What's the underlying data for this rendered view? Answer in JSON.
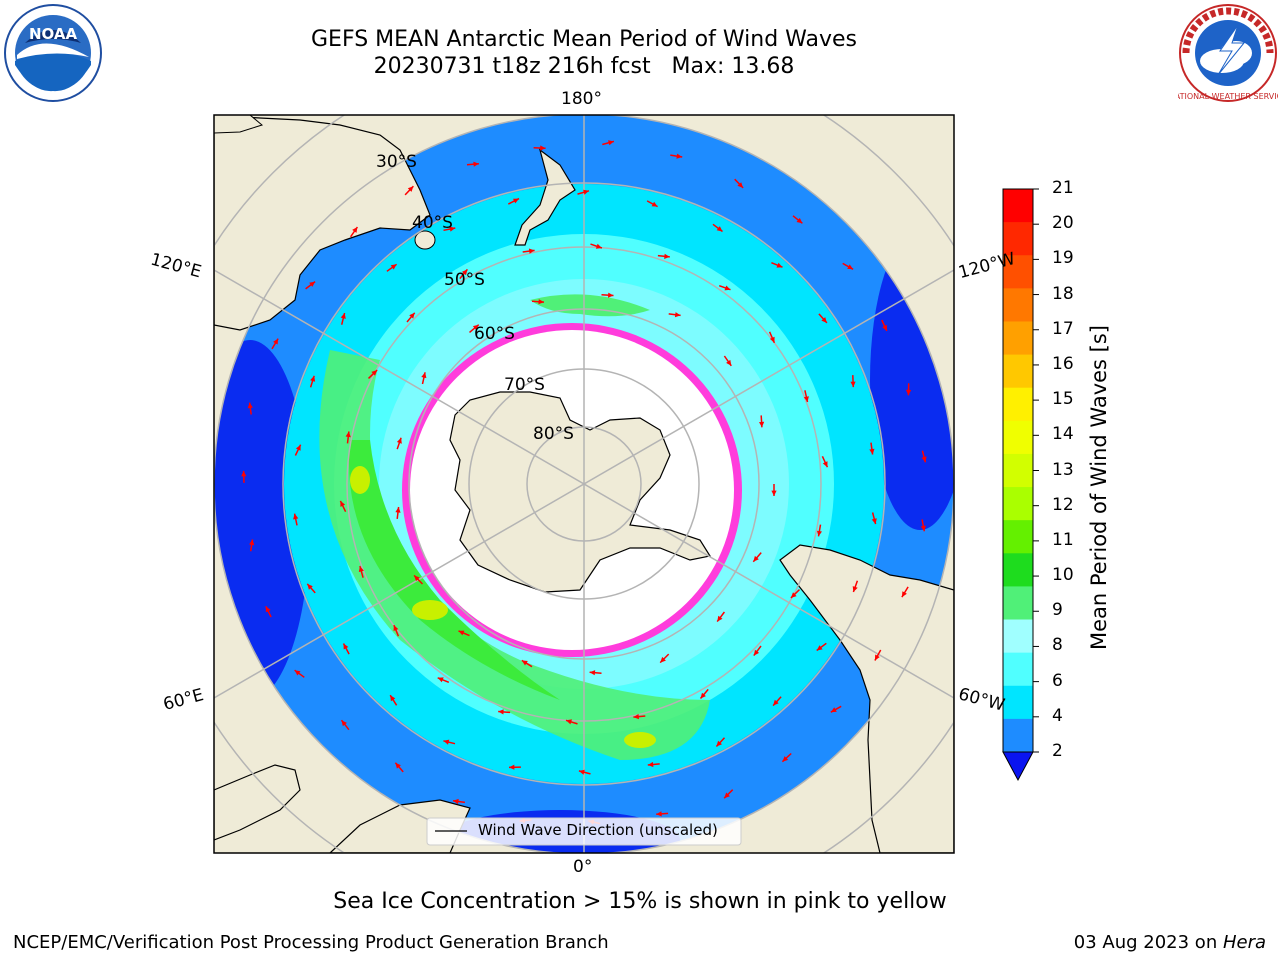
{
  "header": {
    "title_line1": "GEFS MEAN Antarctic Mean Period of Wind Waves",
    "title_line2": "20230731 t18z 216h fcst   Max: 13.68"
  },
  "map": {
    "projection": "south-polar-stereographic",
    "longitude_labels": {
      "top": "180°",
      "bottom": "0°",
      "left_upper": "120°E",
      "left_lower": "60°E",
      "right_upper": "120°W",
      "right_lower": "60°W"
    },
    "latitude_labels": [
      "30°S",
      "40°S",
      "50°S",
      "60°S",
      "70°S",
      "80°S"
    ],
    "legend": "Wind Wave Direction (unscaled)",
    "colors": {
      "land": "#efebd7",
      "ocean_deep": "#0a2cf0",
      "ocean_mid": "#1e8cff",
      "ocean_light": "#00e5ff",
      "ocean_pale": "#7dfcff",
      "green": "#3ceb3c",
      "sea_ice_edge": "#ff3cdc",
      "arrow": "#ff0000"
    }
  },
  "colorbar": {
    "label": "Mean Period of Wind Waves [s]",
    "ticks": [
      "21",
      "20",
      "19",
      "18",
      "17",
      "16",
      "15",
      "14",
      "13",
      "12",
      "11",
      "10",
      "9",
      "8",
      "6",
      "4",
      "2"
    ],
    "colors": [
      "#ff0000",
      "#ff2800",
      "#ff5000",
      "#ff7800",
      "#ffa000",
      "#ffc800",
      "#fff000",
      "#f0ff00",
      "#d2ff00",
      "#aaff00",
      "#64f000",
      "#1edc1e",
      "#50f078",
      "#a0ffff",
      "#50ffff",
      "#00e5ff",
      "#1e8cff"
    ],
    "extend_color": "#0a14f0"
  },
  "footer": {
    "note": "Sea Ice Concentration > 15% is shown in pink to yellow",
    "left": "NCEP/EMC/Verification Post Processing Product Generation Branch",
    "right_prefix": "03 Aug 2023 on ",
    "right_host": "Hera"
  },
  "logos": {
    "noaa_text": "NOAA",
    "nws_text": "NATIONAL WEATHER SERVICE"
  }
}
